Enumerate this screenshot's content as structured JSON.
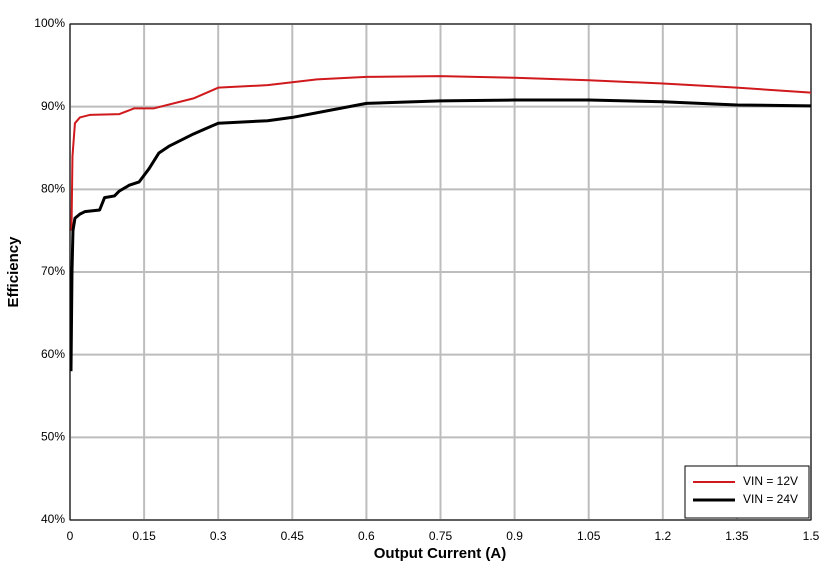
{
  "chart_data": {
    "type": "line",
    "xlabel": "Output Current (A)",
    "ylabel": "Efficiency",
    "xlim": [
      0,
      1.5
    ],
    "xticks": [
      0,
      0.15,
      0.3,
      0.45,
      0.6,
      0.75,
      0.9,
      1.05,
      1.2,
      1.35,
      1.5
    ],
    "ylim": [
      40,
      100
    ],
    "yticks": [
      {
        "value": 40,
        "label": "40%"
      },
      {
        "value": 50,
        "label": "50%"
      },
      {
        "value": 60,
        "label": "60%"
      },
      {
        "value": 70,
        "label": "70%"
      },
      {
        "value": 80,
        "label": "80%"
      },
      {
        "value": 90,
        "label": "90%"
      },
      {
        "value": 100,
        "label": "100%"
      }
    ],
    "grid": true,
    "legend": "lower right",
    "series": [
      {
        "name": "VIN = 12V",
        "color": "#d0191c",
        "x": [
          0.003,
          0.005,
          0.01,
          0.02,
          0.04,
          0.1,
          0.13,
          0.17,
          0.25,
          0.3,
          0.4,
          0.5,
          0.6,
          0.75,
          0.9,
          1.05,
          1.2,
          1.35,
          1.5
        ],
        "values": [
          75,
          84,
          88,
          88.7,
          89,
          89.1,
          89.8,
          89.8,
          91,
          92.3,
          92.6,
          93.3,
          93.6,
          93.7,
          93.5,
          93.2,
          92.8,
          92.3,
          91.7
        ]
      },
      {
        "name": "VIN = 24V",
        "color": "#000000",
        "x": [
          0.002,
          0.004,
          0.006,
          0.01,
          0.02,
          0.03,
          0.06,
          0.07,
          0.09,
          0.1,
          0.12,
          0.14,
          0.16,
          0.18,
          0.2,
          0.25,
          0.3,
          0.4,
          0.45,
          0.6,
          0.75,
          0.9,
          1.05,
          1.2,
          1.35,
          1.5
        ],
        "values": [
          58,
          70,
          75,
          76.5,
          77,
          77.3,
          77.5,
          79,
          79.2,
          79.8,
          80.5,
          80.9,
          82.5,
          84.4,
          85.2,
          86.7,
          88,
          88.3,
          88.7,
          90.4,
          90.7,
          90.8,
          90.8,
          90.6,
          90.2,
          90.1
        ]
      }
    ]
  }
}
